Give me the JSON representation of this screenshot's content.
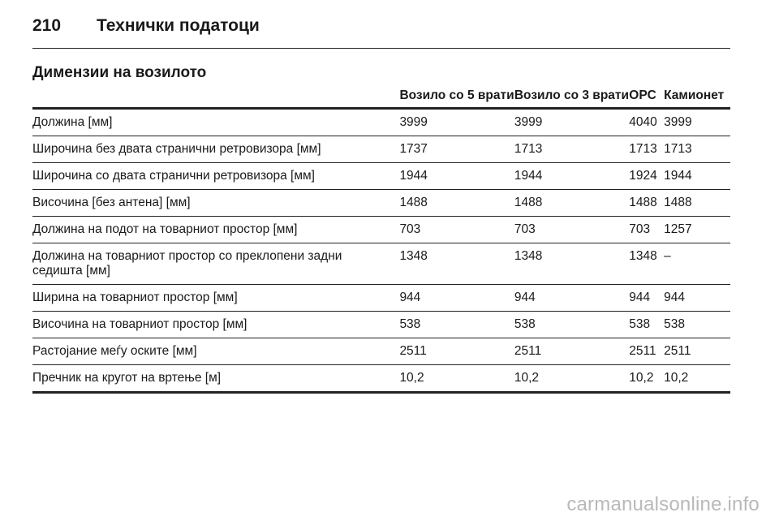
{
  "header": {
    "page_number": "210",
    "title": "Технички податоци"
  },
  "section": {
    "title": "Димензии на возилото"
  },
  "table": {
    "columns": [
      "",
      "Возило со 5 врати",
      "Возило со 3 врати",
      "OPC",
      "Камионет"
    ],
    "rows": [
      [
        "Должина [мм]",
        "3999",
        "3999",
        "4040",
        "3999"
      ],
      [
        "Широчина без двата странични ретровизора [мм]",
        "1737",
        "1713",
        "1713",
        "1713"
      ],
      [
        "Широчина со двата странични ретровизора [мм]",
        "1944",
        "1944",
        "1924",
        "1944"
      ],
      [
        "Височина [без антена] [мм]",
        "1488",
        "1488",
        "1488",
        "1488"
      ],
      [
        "Должина на подот на товарниот простор [мм]",
        "703",
        "703",
        "703",
        "1257"
      ],
      [
        "Должина на товарниот простор со преклопени задни седишта [мм]",
        "1348",
        "1348",
        "1348",
        "–"
      ],
      [
        "Ширина на товарниот простор [мм]",
        "944",
        "944",
        "944",
        "944"
      ],
      [
        "Височина на товарниот простор [мм]",
        "538",
        "538",
        "538",
        "538"
      ],
      [
        "Растојание меѓу оските [мм]",
        "2511",
        "2511",
        "2511",
        "2511"
      ],
      [
        "Пречник на кругот на вртење [м]",
        "10,2",
        "10,2",
        "10,2",
        "10,2"
      ]
    ]
  },
  "watermark": "carmanualsonline.info"
}
